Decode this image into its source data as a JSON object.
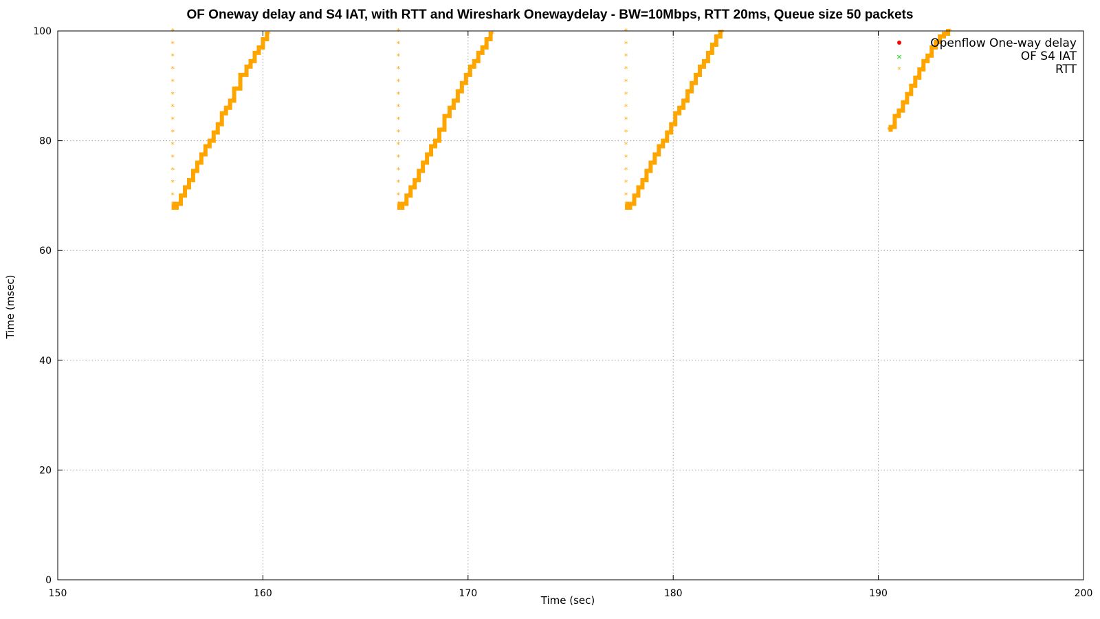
{
  "chart_data": {
    "type": "scatter",
    "title": "OF Oneway delay and S4 IAT, with RTT and Wireshark Onewaydelay - BW=10Mbps, RTT 20ms, Queue size 50 packets",
    "xlabel": "Time (sec)",
    "ylabel": "Time (msec)",
    "xlim": [
      150,
      200
    ],
    "ylim": [
      0,
      100
    ],
    "x_ticks": [
      "150",
      "160",
      "170",
      "180",
      "190",
      "200"
    ],
    "y_ticks": [
      "0",
      "20",
      "40",
      "60",
      "80",
      "100"
    ],
    "grid": true,
    "legend_position": "top-right",
    "series": [
      {
        "name": "Openflow One-way delay",
        "color": "#ff0000",
        "marker": "dot",
        "points": []
      },
      {
        "name": "OF S4 IAT",
        "color": "#00e000",
        "marker": "cross",
        "points": []
      },
      {
        "name": "RTT",
        "color": "#ffa500",
        "marker": "star",
        "points": [
          [
            155.6,
            100
          ],
          [
            155.6,
            97.7
          ],
          [
            155.6,
            95.4
          ],
          [
            155.6,
            93.1
          ],
          [
            155.6,
            90.8
          ],
          [
            155.6,
            88.5
          ],
          [
            155.6,
            86.2
          ],
          [
            155.6,
            83.9
          ],
          [
            155.6,
            81.6
          ],
          [
            155.6,
            79.3
          ],
          [
            155.6,
            77.0
          ],
          [
            155.6,
            74.7
          ],
          [
            155.6,
            72.4
          ],
          [
            155.6,
            70.1
          ],
          [
            155.6,
            68.5
          ],
          [
            155.7,
            67.8
          ],
          [
            155.9,
            68.5
          ],
          [
            156.1,
            70.0
          ],
          [
            156.3,
            71.5
          ],
          [
            156.5,
            72.8
          ],
          [
            156.7,
            74.5
          ],
          [
            156.9,
            76.0
          ],
          [
            157.1,
            77.5
          ],
          [
            157.3,
            79.0
          ],
          [
            157.5,
            80.0
          ],
          [
            157.7,
            81.5
          ],
          [
            157.9,
            83.0
          ],
          [
            158.1,
            85.0
          ],
          [
            158.3,
            86.0
          ],
          [
            158.5,
            87.3
          ],
          [
            158.7,
            89.5
          ],
          [
            159.1,
            92.0
          ],
          [
            159.3,
            93.5
          ],
          [
            159.5,
            94.5
          ],
          [
            159.7,
            96.0
          ],
          [
            159.9,
            97.0
          ],
          [
            160.1,
            98.5
          ],
          [
            160.3,
            99.5
          ],
          [
            166.6,
            100
          ],
          [
            166.6,
            97.7
          ],
          [
            166.6,
            95.4
          ],
          [
            166.6,
            93.1
          ],
          [
            166.6,
            90.8
          ],
          [
            166.6,
            88.5
          ],
          [
            166.6,
            86.2
          ],
          [
            166.6,
            83.9
          ],
          [
            166.6,
            81.6
          ],
          [
            166.6,
            79.3
          ],
          [
            166.6,
            77.0
          ],
          [
            166.6,
            74.7
          ],
          [
            166.6,
            72.4
          ],
          [
            166.6,
            70.1
          ],
          [
            166.6,
            68.5
          ],
          [
            166.7,
            67.8
          ],
          [
            166.9,
            68.5
          ],
          [
            167.1,
            70.0
          ],
          [
            167.3,
            71.5
          ],
          [
            167.5,
            72.8
          ],
          [
            167.7,
            74.5
          ],
          [
            167.9,
            76.0
          ],
          [
            168.1,
            77.5
          ],
          [
            168.3,
            79.0
          ],
          [
            168.5,
            80.0
          ],
          [
            168.7,
            82.0
          ],
          [
            169.0,
            84.5
          ],
          [
            169.2,
            86.0
          ],
          [
            169.4,
            87.3
          ],
          [
            169.6,
            89.0
          ],
          [
            169.8,
            90.5
          ],
          [
            170.0,
            92.0
          ],
          [
            170.2,
            93.5
          ],
          [
            170.4,
            94.5
          ],
          [
            170.6,
            96.0
          ],
          [
            170.8,
            97.0
          ],
          [
            171.0,
            98.5
          ],
          [
            171.2,
            99.5
          ],
          [
            177.7,
            100
          ],
          [
            177.7,
            97.7
          ],
          [
            177.7,
            95.4
          ],
          [
            177.7,
            93.1
          ],
          [
            177.7,
            90.8
          ],
          [
            177.7,
            88.5
          ],
          [
            177.7,
            86.2
          ],
          [
            177.7,
            83.9
          ],
          [
            177.7,
            81.6
          ],
          [
            177.7,
            79.3
          ],
          [
            177.7,
            77.0
          ],
          [
            177.7,
            74.7
          ],
          [
            177.7,
            72.4
          ],
          [
            177.7,
            70.1
          ],
          [
            177.7,
            68.5
          ],
          [
            177.8,
            67.8
          ],
          [
            178.0,
            68.5
          ],
          [
            178.2,
            70.0
          ],
          [
            178.4,
            71.5
          ],
          [
            178.6,
            72.8
          ],
          [
            178.8,
            74.5
          ],
          [
            179.0,
            76.0
          ],
          [
            179.2,
            77.5
          ],
          [
            179.4,
            79.0
          ],
          [
            179.6,
            80.0
          ],
          [
            179.8,
            81.5
          ],
          [
            180.0,
            83.0
          ],
          [
            180.2,
            85.0
          ],
          [
            180.4,
            86.0
          ],
          [
            180.6,
            87.3
          ],
          [
            180.8,
            89.0
          ],
          [
            181.0,
            90.5
          ],
          [
            181.2,
            92.0
          ],
          [
            181.4,
            93.5
          ],
          [
            181.6,
            94.5
          ],
          [
            181.8,
            96.0
          ],
          [
            182.0,
            97.5
          ],
          [
            182.2,
            99.0
          ],
          [
            182.4,
            99.8
          ],
          [
            190.5,
            82.0
          ],
          [
            190.7,
            82.5
          ],
          [
            190.9,
            84.5
          ],
          [
            191.1,
            85.5
          ],
          [
            191.3,
            87.0
          ],
          [
            191.5,
            88.5
          ],
          [
            191.7,
            90.0
          ],
          [
            191.9,
            91.5
          ],
          [
            192.1,
            93.0
          ],
          [
            192.3,
            94.5
          ],
          [
            192.5,
            95.5
          ],
          [
            192.7,
            97.0
          ],
          [
            192.9,
            98.0
          ],
          [
            193.1,
            99.0
          ],
          [
            193.3,
            99.5
          ],
          [
            193.5,
            100
          ]
        ]
      }
    ]
  }
}
